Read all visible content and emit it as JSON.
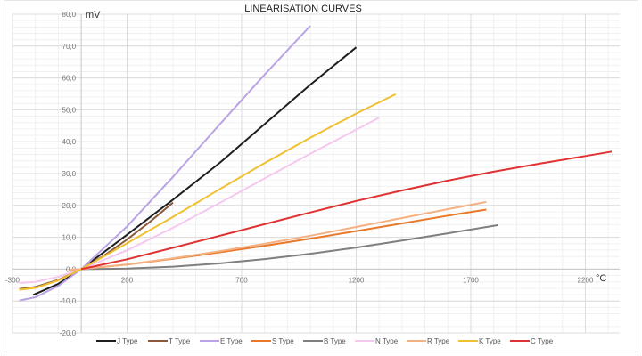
{
  "chart_data": {
    "type": "line",
    "title": "LINEARISATION CURVES",
    "ylabel": "mV",
    "xlabel": "°C",
    "xlim": [
      -300,
      2350
    ],
    "ylim": [
      -20,
      80
    ],
    "xticks": [
      -300,
      200,
      700,
      1200,
      1700,
      2200
    ],
    "xtick_labels": [
      "-300",
      "200",
      "700",
      "1200",
      "1700",
      "2200"
    ],
    "yticks": [
      -20,
      -10,
      0,
      10,
      20,
      30,
      40,
      50,
      60,
      70,
      80
    ],
    "ytick_labels": [
      "-20,0",
      "-10,0",
      "0,0",
      "10,0",
      "20,0",
      "30,0",
      "40,0",
      "50,0",
      "60,0",
      "70,0",
      "80,0"
    ],
    "grid": true,
    "legend_position": "bottom",
    "series": [
      {
        "name": "J Type",
        "color": "#1e1e1e",
        "x": [
          -210,
          -100,
          0,
          200,
          400,
          600,
          800,
          1000,
          1200
        ],
        "y": [
          -8.1,
          -4.6,
          0,
          10.8,
          21.8,
          33.1,
          45.5,
          57.9,
          69.6
        ]
      },
      {
        "name": "T Type",
        "color": "#8b5a3c",
        "x": [
          -270,
          -200,
          -100,
          0,
          100,
          200,
          300,
          400
        ],
        "y": [
          -6.26,
          -5.6,
          -3.38,
          0,
          4.28,
          9.29,
          14.86,
          20.87
        ]
      },
      {
        "name": "E Type",
        "color": "#b9a2e6",
        "x": [
          -270,
          -200,
          -100,
          0,
          200,
          400,
          600,
          800,
          1000
        ],
        "y": [
          -9.83,
          -8.83,
          -5.24,
          0,
          13.42,
          28.95,
          45.09,
          61.02,
          76.37
        ]
      },
      {
        "name": "S Type",
        "color": "#e8782a",
        "x": [
          -50,
          0,
          200,
          400,
          600,
          800,
          1000,
          1200,
          1400,
          1600,
          1768
        ],
        "y": [
          -0.24,
          0,
          1.44,
          3.26,
          5.24,
          7.35,
          9.59,
          11.95,
          14.37,
          16.78,
          18.69
        ]
      },
      {
        "name": "B Type",
        "color": "#7f7f7f",
        "x": [
          0,
          200,
          400,
          600,
          800,
          1000,
          1200,
          1400,
          1600,
          1820
        ],
        "y": [
          0,
          0.18,
          0.79,
          1.79,
          3.15,
          4.83,
          6.79,
          8.96,
          11.26,
          13.82
        ]
      },
      {
        "name": "N Type",
        "color": "#f5c8ef",
        "x": [
          -270,
          -200,
          -100,
          0,
          200,
          400,
          600,
          800,
          1000,
          1300
        ],
        "y": [
          -4.35,
          -3.99,
          -2.41,
          0,
          5.91,
          12.97,
          20.61,
          28.46,
          36.26,
          47.51
        ]
      },
      {
        "name": "R Type",
        "color": "#f4b183",
        "x": [
          -50,
          0,
          200,
          400,
          600,
          800,
          1000,
          1200,
          1400,
          1600,
          1768
        ],
        "y": [
          -0.23,
          0,
          1.47,
          3.41,
          5.58,
          7.95,
          10.51,
          13.23,
          16.04,
          18.84,
          21.1
        ]
      },
      {
        "name": "K Type",
        "color": "#f0c030",
        "x": [
          -270,
          -200,
          -100,
          0,
          200,
          400,
          600,
          800,
          1000,
          1200,
          1372
        ],
        "y": [
          -6.46,
          -5.89,
          -3.55,
          0,
          8.14,
          16.4,
          24.91,
          33.28,
          41.28,
          48.84,
          54.89
        ]
      },
      {
        "name": "C Type",
        "color": "#e03232",
        "x": [
          0,
          200,
          400,
          600,
          800,
          1000,
          1200,
          1400,
          1600,
          1800,
          2000,
          2200,
          2315
        ],
        "y": [
          0,
          3.1,
          6.7,
          10.4,
          14.1,
          17.8,
          21.4,
          24.7,
          27.8,
          30.6,
          33.1,
          35.5,
          36.9
        ]
      }
    ]
  }
}
